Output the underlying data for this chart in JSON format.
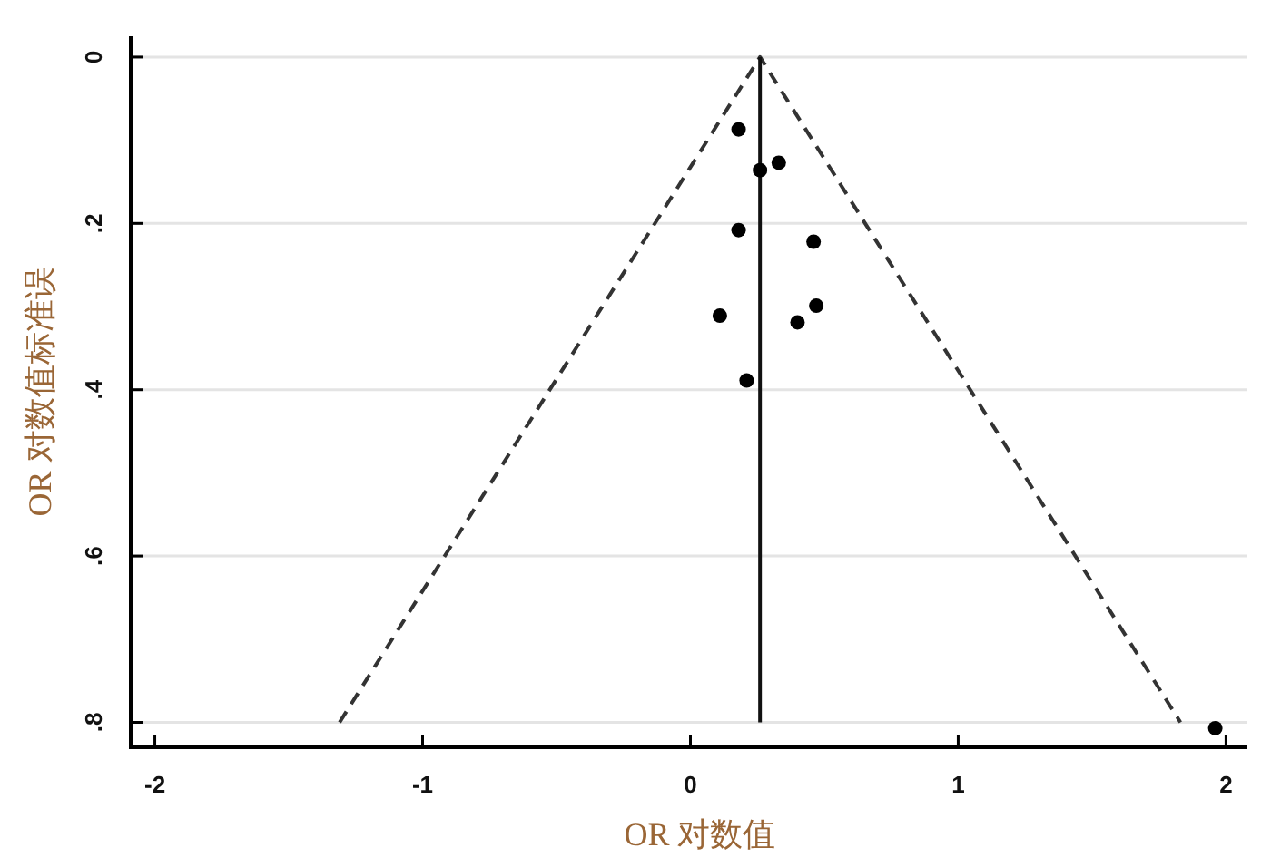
{
  "chart_data": {
    "type": "scatter",
    "xlabel": "OR 对数值",
    "ylabel": "OR 对数值标准误",
    "xlim": [
      -2.09,
      2.08
    ],
    "xticks": [
      -2,
      -1,
      0,
      1,
      2
    ],
    "ylim": [
      0.83,
      -0.025
    ],
    "yticks": [
      0,
      {
        "value": 0.2,
        "label": ".2"
      },
      {
        "value": 0.4,
        "label": ".4"
      },
      {
        "value": 0.6,
        "label": ".6"
      },
      {
        "value": 0.8,
        "label": ".8"
      }
    ],
    "grid": "y",
    "series": [
      {
        "type": "line",
        "x": [
          -1.31,
          0.26,
          1.83
        ],
        "values": [
          0.8,
          0,
          0.8
        ],
        "color": "#333333",
        "line_style": "dashed"
      },
      {
        "type": "line",
        "x": [
          0.26,
          0.26
        ],
        "values": [
          0,
          0.8
        ],
        "color": "#111111",
        "line_style": "solid"
      },
      {
        "x": [
          0.18,
          0.33,
          0.26,
          0.18,
          0.46,
          0.11,
          0.47,
          0.4,
          0.21,
          1.96
        ],
        "values": [
          0.087,
          0.127,
          0.136,
          0.208,
          0.222,
          0.311,
          0.299,
          0.319,
          0.389,
          0.807
        ],
        "color": "#000000",
        "marker": "circle"
      }
    ]
  }
}
